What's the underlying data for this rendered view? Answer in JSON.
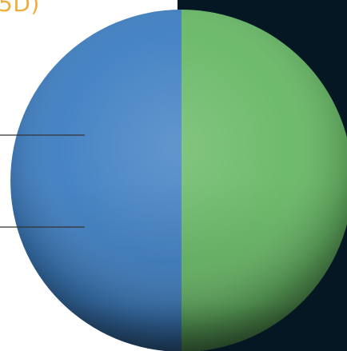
{
  "header": {
    "title_fragment": "5D)"
  },
  "colors": {
    "background": "#ffffff",
    "dark_panel": "#041722",
    "title": "#f0ac3c",
    "leader_line": "#333333"
  },
  "chart_data": {
    "type": "pie",
    "title": "",
    "series": [
      {
        "values": [
          50,
          50
        ],
        "colors": [
          "#68b866",
          "#3f7fc2"
        ]
      }
    ],
    "slices": [
      {
        "value": 50,
        "color": "#68b866"
      },
      {
        "value": 50,
        "color": "#3f7fc2"
      }
    ],
    "start_angle_degrees": 90,
    "direction": "clockwise",
    "legend": "none",
    "labels_visible": false
  }
}
